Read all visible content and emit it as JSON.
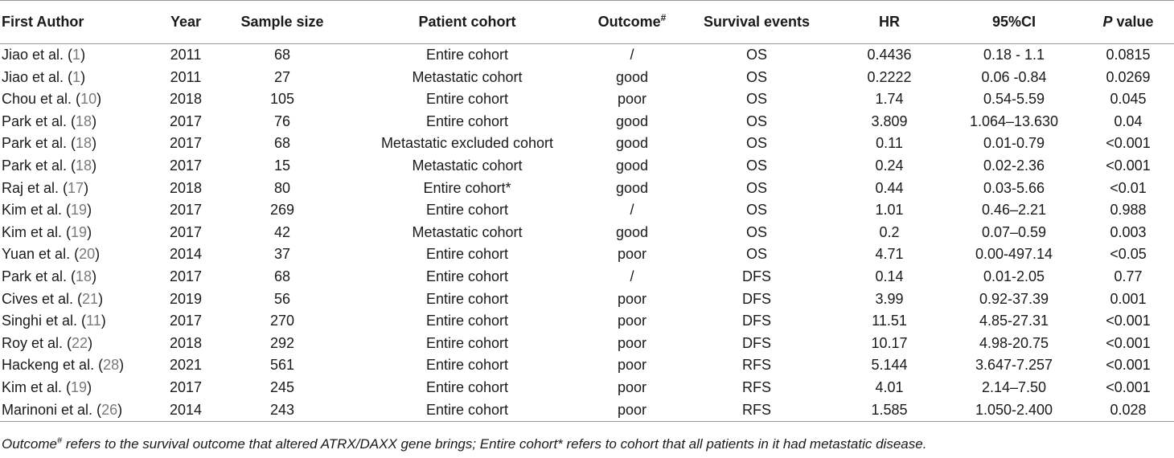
{
  "headers": {
    "first_author": "First Author",
    "year": "Year",
    "sample_size": "Sample size",
    "patient_cohort": "Patient cohort",
    "outcome": "Outcome",
    "outcome_mark": "#",
    "survival_events": "Survival events",
    "hr": "HR",
    "ci": "95%CI",
    "p_italic": "P",
    "p_rest": " value"
  },
  "rows": [
    {
      "author": "Jiao et al. (",
      "ref": "1",
      "year": "2011",
      "n": "68",
      "cohort": "Entire cohort",
      "outcome": "/",
      "event": "OS",
      "hr": "0.4436",
      "ci": "0.18 - 1.1",
      "p": "0.0815"
    },
    {
      "author": "Jiao et al. (",
      "ref": "1",
      "year": "2011",
      "n": "27",
      "cohort": "Metastatic cohort",
      "outcome": "good",
      "event": "OS",
      "hr": "0.2222",
      "ci": "0.06 -0.84",
      "p": "0.0269"
    },
    {
      "author": "Chou et al. (",
      "ref": "10",
      "year": "2018",
      "n": "105",
      "cohort": "Entire cohort",
      "outcome": "poor",
      "event": "OS",
      "hr": "1.74",
      "ci": "0.54-5.59",
      "p": "0.045"
    },
    {
      "author": "Park et al. (",
      "ref": "18",
      "year": "2017",
      "n": "76",
      "cohort": "Entire cohort",
      "outcome": "good",
      "event": "OS",
      "hr": "3.809",
      "ci": "1.064–13.630",
      "p": "0.04"
    },
    {
      "author": "Park et al. (",
      "ref": "18",
      "year": "2017",
      "n": "68",
      "cohort": "Metastatic excluded cohort",
      "outcome": "good",
      "event": "OS",
      "hr": "0.11",
      "ci": "0.01-0.79",
      "p": "<0.001"
    },
    {
      "author": "Park et al. (",
      "ref": "18",
      "year": "2017",
      "n": "15",
      "cohort": "Metastatic cohort",
      "outcome": "good",
      "event": "OS",
      "hr": "0.24",
      "ci": "0.02-2.36",
      "p": "<0.001"
    },
    {
      "author": "Raj et al. (",
      "ref": "17",
      "year": "2018",
      "n": "80",
      "cohort": "Entire cohort*",
      "outcome": "good",
      "event": "OS",
      "hr": "0.44",
      "ci": "0.03-5.66",
      "p": "<0.01"
    },
    {
      "author": "Kim et al. (",
      "ref": "19",
      "year": "2017",
      "n": "269",
      "cohort": "Entire cohort",
      "outcome": "/",
      "event": "OS",
      "hr": "1.01",
      "ci": "0.46–2.21",
      "p": "0.988"
    },
    {
      "author": "Kim et al. (",
      "ref": "19",
      "year": "2017",
      "n": "42",
      "cohort": "Metastatic cohort",
      "outcome": "good",
      "event": "OS",
      "hr": "0.2",
      "ci": "0.07–0.59",
      "p": "0.003"
    },
    {
      "author": "Yuan et al. (",
      "ref": "20",
      "year": "2014",
      "n": "37",
      "cohort": "Entire cohort",
      "outcome": "poor",
      "event": "OS",
      "hr": "4.71",
      "ci": "0.00-497.14",
      "p": "<0.05"
    },
    {
      "author": "Park et al. (",
      "ref": "18",
      "year": "2017",
      "n": "68",
      "cohort": "Entire cohort",
      "outcome": "/",
      "event": "DFS",
      "hr": "0.14",
      "ci": "0.01-2.05",
      "p": "0.77"
    },
    {
      "author": "Cives et al. (",
      "ref": "21",
      "year": "2019",
      "n": "56",
      "cohort": "Entire cohort",
      "outcome": "poor",
      "event": "DFS",
      "hr": "3.99",
      "ci": "0.92-37.39",
      "p": "0.001"
    },
    {
      "author": "Singhi et al. (",
      "ref": "11",
      "year": "2017",
      "n": "270",
      "cohort": "Entire cohort",
      "outcome": "poor",
      "event": "DFS",
      "hr": "11.51",
      "ci": "4.85-27.31",
      "p": "<0.001"
    },
    {
      "author": "Roy et al. (",
      "ref": "22",
      "year": "2018",
      "n": "292",
      "cohort": "Entire cohort",
      "outcome": "poor",
      "event": "DFS",
      "hr": "10.17",
      "ci": "4.98-20.75",
      "p": "<0.001"
    },
    {
      "author": "Hackeng et al. (",
      "ref": "28",
      "year": "2021",
      "n": "561",
      "cohort": "Entire cohort",
      "outcome": "poor",
      "event": "RFS",
      "hr": "5.144",
      "ci": "3.647-7.257",
      "p": "<0.001"
    },
    {
      "author": "Kim et al. (",
      "ref": "19",
      "year": "2017",
      "n": "245",
      "cohort": "Entire cohort",
      "outcome": "poor",
      "event": "RFS",
      "hr": "4.01",
      "ci": "2.14–7.50",
      "p": "<0.001"
    },
    {
      "author": "Marinoni et al. (",
      "ref": "26",
      "year": "2014",
      "n": "243",
      "cohort": "Entire cohort",
      "outcome": "poor",
      "event": "RFS",
      "hr": "1.585",
      "ci": "1.050-2.400",
      "p": "0.028"
    }
  ],
  "footnote": {
    "part1": "Outcome",
    "mark1": "#",
    "part2": " refers to the survival outcome that altered ATRX/DAXX gene brings; Entire cohort* refers to cohort that all patients in it had metastatic disease."
  }
}
